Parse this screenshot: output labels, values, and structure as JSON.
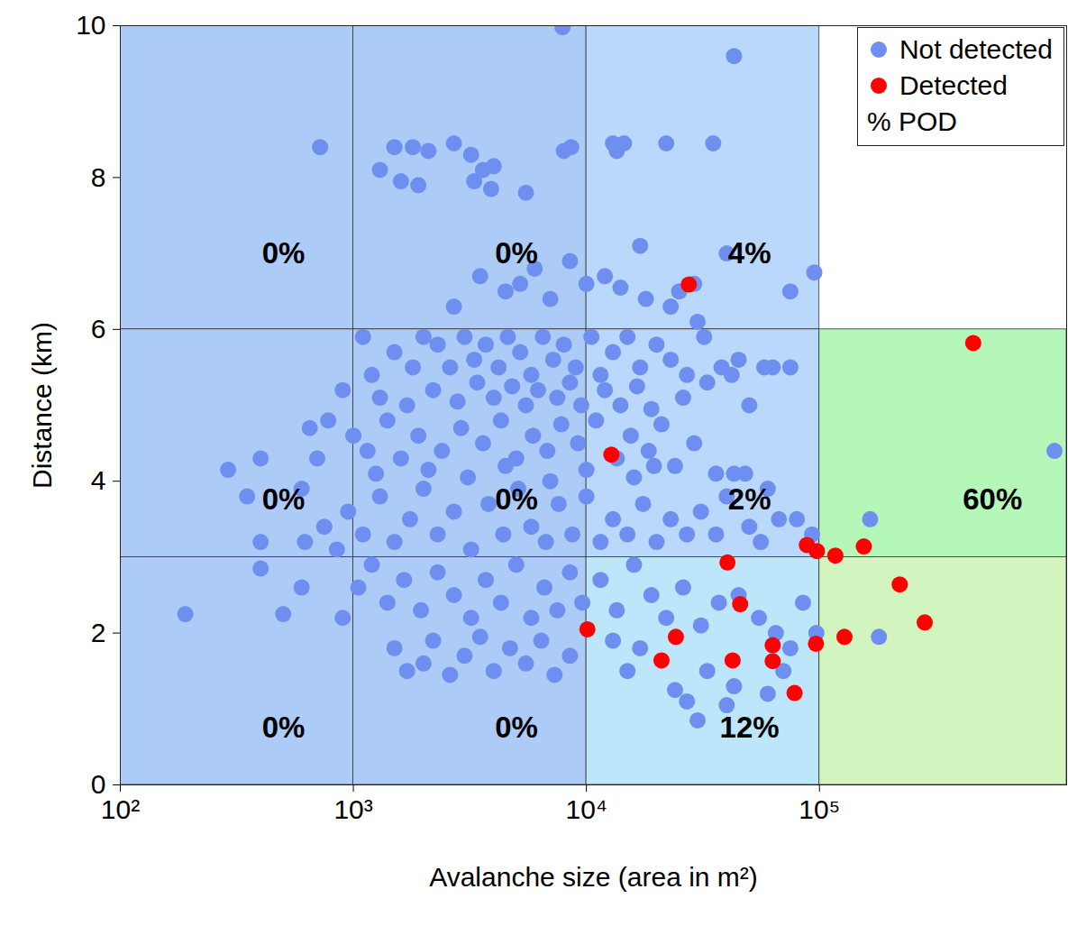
{
  "chart_data": {
    "type": "scatter",
    "xlabel": "Avalanche size (area in m²)",
    "ylabel": "Distance (km)",
    "log": "x",
    "grid": false,
    "xlim": [
      100,
      1150000
    ],
    "ylim": [
      0,
      10
    ],
    "xticks": [
      {
        "value": 100,
        "label": "10²"
      },
      {
        "value": 1000,
        "label": "10³"
      },
      {
        "value": 10000,
        "label": "10⁴"
      },
      {
        "value": 100000,
        "label": "10⁵"
      }
    ],
    "yticks": [
      0,
      2,
      4,
      6,
      8,
      10
    ],
    "legend": "top-right",
    "legend_text": "% POD",
    "cells": [
      {
        "x": [
          100,
          1000
        ],
        "y": [
          6,
          10
        ],
        "pod": 0,
        "label": "0%",
        "color": "#adcbf7"
      },
      {
        "x": [
          1000,
          10000
        ],
        "y": [
          6,
          10
        ],
        "pod": 0,
        "label": "0%",
        "color": "#adcbf7"
      },
      {
        "x": [
          10000,
          100000
        ],
        "y": [
          6,
          10
        ],
        "pod": 4,
        "label": "4%",
        "color": "#bad8fb"
      },
      {
        "x": [
          100,
          1000
        ],
        "y": [
          3,
          6
        ],
        "pod": 0,
        "label": "0%",
        "color": "#adcbf7"
      },
      {
        "x": [
          1000,
          10000
        ],
        "y": [
          3,
          6
        ],
        "pod": 0,
        "label": "0%",
        "color": "#adcbf7"
      },
      {
        "x": [
          10000,
          100000
        ],
        "y": [
          3,
          6
        ],
        "pod": 2,
        "label": "2%",
        "color": "#bad8fb"
      },
      {
        "x": [
          100000,
          1150000
        ],
        "y": [
          3,
          6
        ],
        "pod": 60,
        "label": "60%",
        "color": "#b4f7b8"
      },
      {
        "x": [
          100,
          1000
        ],
        "y": [
          0,
          3
        ],
        "pod": 0,
        "label": "0%",
        "color": "#adcbf7"
      },
      {
        "x": [
          1000,
          10000
        ],
        "y": [
          0,
          3
        ],
        "pod": 0,
        "label": "0%",
        "color": "#adcbf7"
      },
      {
        "x": [
          10000,
          100000
        ],
        "y": [
          0,
          3
        ],
        "pod": 12,
        "label": "12%",
        "color": "#bde6fb"
      },
      {
        "x": [
          100000,
          1150000
        ],
        "y": [
          0,
          3
        ],
        "pod": null,
        "label": null,
        "color": "#d2f5bf"
      }
    ],
    "series": [
      {
        "name": "Not detected",
        "color": "#6f8ff0",
        "marker": "circle",
        "x": [
          720,
          1300,
          1500,
          1600,
          1800,
          1900,
          2100,
          2700,
          3200,
          3300,
          3600,
          3900,
          4000,
          5500,
          8000,
          8600,
          7900,
          13000,
          14500,
          13500,
          22000,
          35000,
          43000,
          17000,
          8500,
          40000,
          75000,
          95000,
          12000,
          6000,
          3500,
          4500,
          10000,
          25000,
          29000,
          5200,
          2700,
          7000,
          14000,
          18000,
          30000,
          23000,
          1100,
          1200,
          1500,
          1800,
          2000,
          2300,
          2600,
          3000,
          3300,
          3700,
          4200,
          4600,
          5200,
          5800,
          6500,
          7200,
          8000,
          9000,
          10500,
          11500,
          13000,
          15000,
          17000,
          20000,
          23000,
          27000,
          32000,
          38000,
          42000,
          45000,
          58000,
          63000,
          75000,
          900,
          1300,
          1700,
          2200,
          2800,
          3400,
          4000,
          4800,
          5500,
          6200,
          7500,
          8500,
          9500,
          12000,
          14000,
          16500,
          19000,
          26000,
          33000,
          50000,
          780,
          650,
          1000,
          1150,
          1400,
          1600,
          1900,
          2400,
          2900,
          3600,
          4300,
          5000,
          5900,
          6800,
          7800,
          9200,
          11000,
          13500,
          15500,
          18500,
          21000,
          24000,
          29000,
          36000,
          43000,
          48000,
          60000,
          700,
          1250,
          2100,
          3100,
          4500,
          7000,
          10000,
          16000,
          19500,
          400,
          290,
          350,
          400,
          600,
          620,
          750,
          850,
          950,
          1100,
          1300,
          1500,
          1750,
          2000,
          2300,
          2700,
          3200,
          3800,
          4400,
          5100,
          5800,
          6700,
          7600,
          8700,
          10000,
          11500,
          13000,
          15000,
          17500,
          20000,
          23000,
          27000,
          31000,
          36000,
          40000,
          50000,
          56000,
          67000,
          80000,
          93000,
          165000,
          1020000,
          400,
          500,
          600,
          900,
          1050,
          1200,
          1400,
          1650,
          1950,
          2300,
          2700,
          3200,
          3700,
          4300,
          5000,
          5800,
          6600,
          7500,
          8500,
          9600,
          11500,
          13500,
          16000,
          19000,
          22000,
          26000,
          31000,
          37000,
          45000,
          55000,
          65000,
          85000,
          97000,
          180000,
          190,
          1500,
          1700,
          2000,
          2200,
          2600,
          3000,
          3500,
          4000,
          4700,
          5500,
          6400,
          7300,
          8500,
          13000,
          15000,
          17000,
          24000,
          27000,
          30000,
          33000,
          40000,
          43000,
          60000,
          70000,
          75000
        ],
        "values": [
          8.4,
          8.1,
          8.4,
          7.95,
          8.4,
          7.9,
          8.35,
          8.45,
          8.3,
          7.95,
          8.1,
          7.85,
          8.15,
          7.8,
          8.35,
          8.4,
          9.98,
          8.45,
          8.45,
          8.35,
          8.45,
          8.45,
          9.6,
          7.1,
          6.9,
          7.0,
          6.5,
          6.75,
          6.7,
          6.8,
          6.7,
          6.5,
          6.6,
          6.5,
          6.6,
          6.6,
          6.3,
          6.4,
          6.55,
          6.4,
          6.1,
          6.3,
          5.9,
          5.4,
          5.7,
          5.5,
          5.9,
          5.8,
          5.5,
          5.9,
          5.6,
          5.8,
          5.5,
          5.9,
          5.7,
          5.4,
          5.9,
          5.6,
          5.8,
          5.5,
          5.9,
          5.4,
          5.7,
          5.9,
          5.5,
          5.8,
          5.6,
          5.4,
          5.9,
          5.5,
          5.4,
          5.6,
          5.5,
          5.5,
          5.5,
          5.2,
          5.1,
          5.0,
          5.2,
          5.05,
          5.3,
          5.1,
          5.25,
          5.0,
          5.2,
          5.1,
          5.3,
          5.0,
          5.2,
          5.0,
          5.25,
          4.95,
          5.1,
          5.3,
          5.0,
          4.8,
          4.7,
          4.6,
          4.4,
          4.8,
          4.3,
          4.6,
          4.4,
          4.7,
          4.5,
          4.8,
          4.3,
          4.6,
          4.4,
          4.75,
          4.5,
          4.8,
          4.3,
          4.6,
          4.4,
          4.75,
          4.2,
          4.5,
          4.1,
          4.1,
          4.1,
          3.9,
          4.3,
          4.1,
          4.15,
          4.05,
          4.2,
          4.0,
          4.15,
          4.05,
          4.2,
          4.3,
          4.15,
          3.8,
          3.2,
          3.9,
          3.2,
          3.4,
          3.1,
          3.6,
          3.3,
          3.8,
          3.2,
          3.5,
          3.9,
          3.3,
          3.6,
          3.1,
          3.7,
          3.3,
          3.9,
          3.4,
          3.2,
          3.7,
          3.3,
          3.8,
          3.2,
          3.5,
          3.3,
          3.7,
          3.2,
          3.5,
          3.3,
          3.6,
          3.3,
          3.8,
          3.4,
          3.2,
          3.5,
          3.5,
          3.3,
          3.5,
          4.4,
          2.85,
          2.25,
          2.6,
          2.2,
          2.6,
          2.9,
          2.4,
          2.7,
          2.3,
          2.8,
          2.5,
          2.2,
          2.7,
          2.4,
          2.9,
          2.2,
          2.6,
          2.3,
          2.8,
          2.4,
          2.7,
          2.3,
          2.9,
          2.5,
          2.2,
          2.6,
          2.1,
          2.4,
          2.5,
          2.2,
          2.0,
          2.4,
          2.0,
          1.95,
          2.25,
          1.8,
          1.5,
          1.6,
          1.9,
          1.45,
          1.7,
          1.95,
          1.5,
          1.8,
          1.6,
          1.9,
          1.45,
          1.7,
          1.9,
          1.5,
          1.8,
          1.25,
          1.1,
          0.85,
          1.5,
          1.05,
          1.3,
          1.2,
          1.5,
          1.8
        ]
      },
      {
        "name": "Detected",
        "color": "#ff0000",
        "marker": "circle",
        "x": [
          27500,
          457000,
          12800,
          88300,
          97500,
          117000,
          155000,
          40300,
          221000,
          283000,
          45700,
          10100,
          24200,
          21000,
          42400,
          63000,
          63000,
          78200,
          96600,
          128000
        ],
        "values": [
          6.59,
          5.82,
          4.35,
          3.16,
          3.08,
          3.02,
          3.14,
          2.93,
          2.64,
          2.14,
          2.38,
          2.05,
          1.95,
          1.64,
          1.64,
          1.84,
          1.63,
          1.21,
          1.86,
          1.95
        ]
      }
    ]
  }
}
